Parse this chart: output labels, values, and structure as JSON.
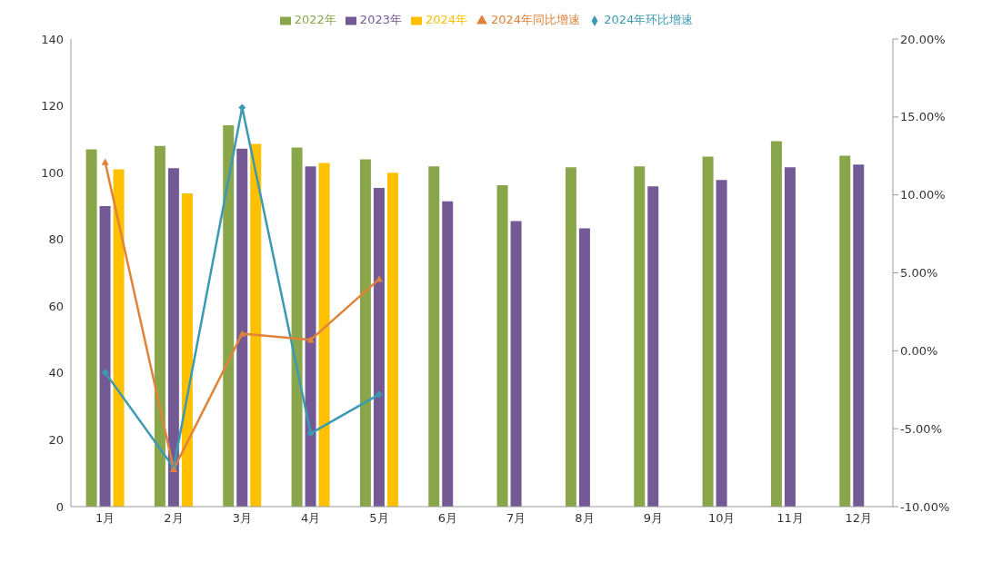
{
  "chart_data": {
    "type": "bar",
    "categories": [
      "1月",
      "2月",
      "3月",
      "4月",
      "5月",
      "6月",
      "7月",
      "8月",
      "9月",
      "10月",
      "11月",
      "12月"
    ],
    "series": [
      {
        "name": "2022年",
        "color": "#8aa64b",
        "values": [
          107.0,
          108.0,
          114.2,
          107.5,
          104.0,
          101.9,
          96.2,
          101.6,
          101.9,
          104.8,
          109.4,
          105.1
        ]
      },
      {
        "name": "2023年",
        "color": "#735a95",
        "values": [
          90.0,
          101.3,
          107.2,
          101.9,
          95.4,
          91.4,
          85.5,
          83.3,
          95.9,
          97.8,
          101.6,
          102.4
        ]
      },
      {
        "name": "2024年",
        "color": "#ffc000",
        "values": [
          101.0,
          93.8,
          108.6,
          102.9,
          100.0,
          null,
          null,
          null,
          null,
          null,
          null,
          null
        ]
      },
      {
        "name": "2024年环比增速",
        "type": "line",
        "axis": "y2",
        "marker": "diamond",
        "color": "#3b9ab2",
        "values": [
          -1.4,
          -7.5,
          15.6,
          -5.3,
          -2.8,
          null,
          null,
          null,
          null,
          null,
          null,
          null
        ]
      },
      {
        "name": "2024年同比增速",
        "type": "line",
        "axis": "y2",
        "marker": "triangle",
        "color": "#e0823a",
        "values": [
          12.1,
          -7.6,
          1.1,
          0.7,
          4.6,
          null,
          null,
          null,
          null,
          null,
          null,
          null
        ]
      }
    ],
    "ylim": [
      0,
      140
    ],
    "yticks": [
      0,
      20,
      40,
      60,
      80,
      100,
      120,
      140
    ],
    "y2lim": [
      -10,
      20
    ],
    "y2ticks": [
      {
        "value": -10,
        "label": "-10.00%"
      },
      {
        "value": -5,
        "label": "-5.00%"
      },
      {
        "value": 0,
        "label": "0.00%"
      },
      {
        "value": 5,
        "label": "5.00%"
      },
      {
        "value": 10,
        "label": "10.00%"
      },
      {
        "value": 15,
        "label": "15.00%"
      },
      {
        "value": 20,
        "label": "20.00%"
      }
    ],
    "grid": false,
    "legend": "top"
  }
}
